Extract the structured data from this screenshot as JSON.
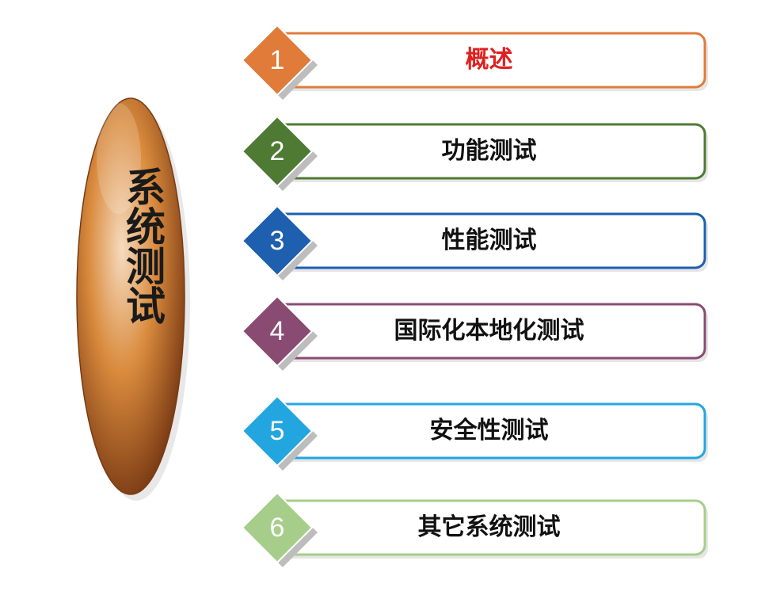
{
  "title": "系统测试",
  "items": [
    {
      "number": "1",
      "label": "概述",
      "color": "#E07B39",
      "label_color": "#E02020"
    },
    {
      "number": "2",
      "label": "功能测试",
      "color": "#4E7A34",
      "label_color": "#111111"
    },
    {
      "number": "3",
      "label": "性能测试",
      "color": "#1E5FB0",
      "label_color": "#111111"
    },
    {
      "number": "4",
      "label": "国际化本地化测试",
      "color": "#8A4B73",
      "label_color": "#111111"
    },
    {
      "number": "5",
      "label": "安全性测试",
      "color": "#23A6DF",
      "label_color": "#111111"
    },
    {
      "number": "6",
      "label": "其它系统测试",
      "color": "#A6CE8A",
      "label_color": "#111111"
    }
  ],
  "oval_colors": [
    "#F6DCC0",
    "#D98A3C",
    "#6B2E0E"
  ]
}
